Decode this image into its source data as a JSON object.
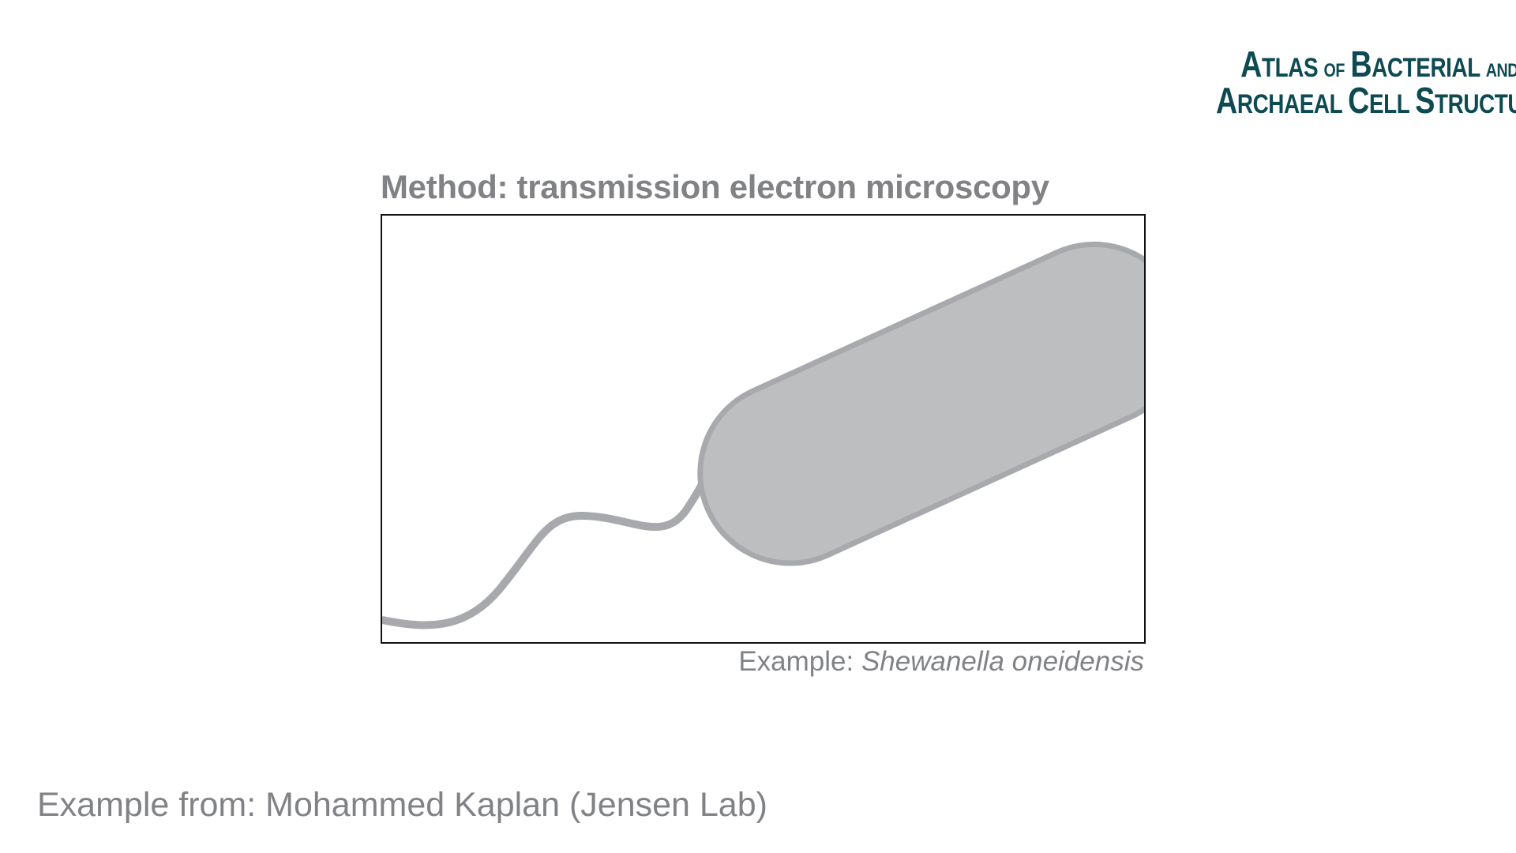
{
  "logo": {
    "line1_big": "A",
    "line1_rest": "TLAS",
    "line1_small": "OF",
    "line1_big2": "B",
    "line1_rest2": "ACTERIAL",
    "line1_small2": "AND",
    "line2_big": "A",
    "line2_rest": "RCHAEAL",
    "line2_big2": "C",
    "line2_rest2": "ELL",
    "line2_big3": "S",
    "line2_rest3": "TRUCTURE"
  },
  "method_title": "Method: transmission electron microscopy",
  "example": {
    "label": "Example: ",
    "species": "Shewanella oneidensis"
  },
  "credit": "Example from: Mohammed Kaplan (Jensen Lab)",
  "colors": {
    "text_gray": "#808285",
    "cell_fill": "#bcbec0",
    "cell_outline": "#a7a9ac",
    "logo_teal": "#0d4a52"
  }
}
